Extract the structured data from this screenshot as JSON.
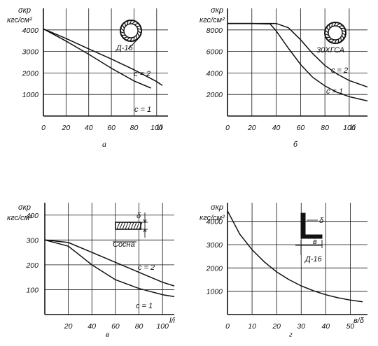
{
  "chart_data": [
    {
      "type": "line",
      "ylabel_line1": "σкр",
      "ylabel_line2": "кгс/см²",
      "xlabel": "l/i",
      "caption": "а",
      "x_ticks": [
        "0",
        "20",
        "40",
        "60",
        "80",
        "100"
      ],
      "y_ticks": [
        "1000",
        "2000",
        "3000",
        "4000"
      ],
      "xlim": [
        0,
        110
      ],
      "ylim": [
        0,
        5000
      ],
      "grid": true,
      "section_label": "Д-16",
      "section_icon": "tube-section-icon",
      "series": [
        {
          "name": "с = 2",
          "x": [
            0,
            20,
            40,
            60,
            80,
            100,
            105
          ],
          "y": [
            4050,
            3600,
            3120,
            2650,
            2150,
            1600,
            1420
          ]
        },
        {
          "name": "с = 1",
          "x": [
            0,
            20,
            40,
            60,
            80,
            95
          ],
          "y": [
            4050,
            3480,
            2870,
            2220,
            1630,
            1300
          ]
        }
      ]
    },
    {
      "type": "line",
      "ylabel_line1": "σкр",
      "ylabel_line2": "кгс/см²",
      "xlabel": "l/i",
      "caption": "б",
      "x_ticks": [
        "0",
        "20",
        "40",
        "60",
        "80",
        "100"
      ],
      "y_ticks": [
        "2000",
        "4000",
        "6000",
        "8000"
      ],
      "xlim": [
        0,
        115
      ],
      "ylim": [
        0,
        10000
      ],
      "grid": true,
      "section_label": "30ХГСА",
      "section_icon": "tube-section-icon",
      "series": [
        {
          "name": "с = 2",
          "x": [
            0,
            20,
            40,
            50,
            60,
            70,
            80,
            90,
            100,
            115
          ],
          "y": [
            8600,
            8600,
            8600,
            8200,
            7100,
            5800,
            4700,
            3900,
            3300,
            2700
          ]
        },
        {
          "name": "с = 1",
          "x": [
            0,
            20,
            35,
            40,
            50,
            60,
            70,
            80,
            90,
            100,
            115
          ],
          "y": [
            8600,
            8600,
            8550,
            7900,
            6300,
            4800,
            3600,
            2800,
            2200,
            1800,
            1400
          ]
        }
      ]
    },
    {
      "type": "line",
      "ylabel_line1": "σкр",
      "ylabel_line2": "кгс/см²",
      "xlabel": "l/i",
      "caption": "в",
      "x_ticks": [
        "20",
        "40",
        "60",
        "80",
        "100"
      ],
      "y_ticks": [
        "100",
        "200",
        "300",
        "400"
      ],
      "xlim": [
        0,
        110
      ],
      "ylim": [
        0,
        450
      ],
      "grid": true,
      "section_label": "Сосна",
      "section_icon": "rectangular-section-icon",
      "series": [
        {
          "name": "с = 2",
          "x": [
            0,
            20,
            40,
            60,
            80,
            100,
            110
          ],
          "y": [
            300,
            290,
            250,
            210,
            170,
            130,
            115
          ]
        },
        {
          "name": "с = 1",
          "x": [
            0,
            20,
            40,
            60,
            80,
            100,
            110
          ],
          "y": [
            300,
            275,
            200,
            140,
            105,
            80,
            72
          ]
        }
      ]
    },
    {
      "type": "line",
      "ylabel_line1": "σкр",
      "ylabel_line2": "кгс/см²",
      "xlabel": "в/δ",
      "caption": "г",
      "x_ticks": [
        "0",
        "10",
        "20",
        "30",
        "40",
        "50"
      ],
      "y_ticks": [
        "1000",
        "2000",
        "3000",
        "4000"
      ],
      "xlim": [
        0,
        57
      ],
      "ylim": [
        0,
        4800
      ],
      "grid": true,
      "section_label": "Д-16",
      "section_icon": "angle-section-icon",
      "series": [
        {
          "name": "",
          "x": [
            0,
            5,
            10,
            15,
            20,
            25,
            30,
            35,
            40,
            45,
            50,
            55
          ],
          "y": [
            4450,
            3450,
            2780,
            2260,
            1830,
            1500,
            1230,
            1020,
            850,
            720,
            620,
            550
          ]
        }
      ]
    }
  ]
}
